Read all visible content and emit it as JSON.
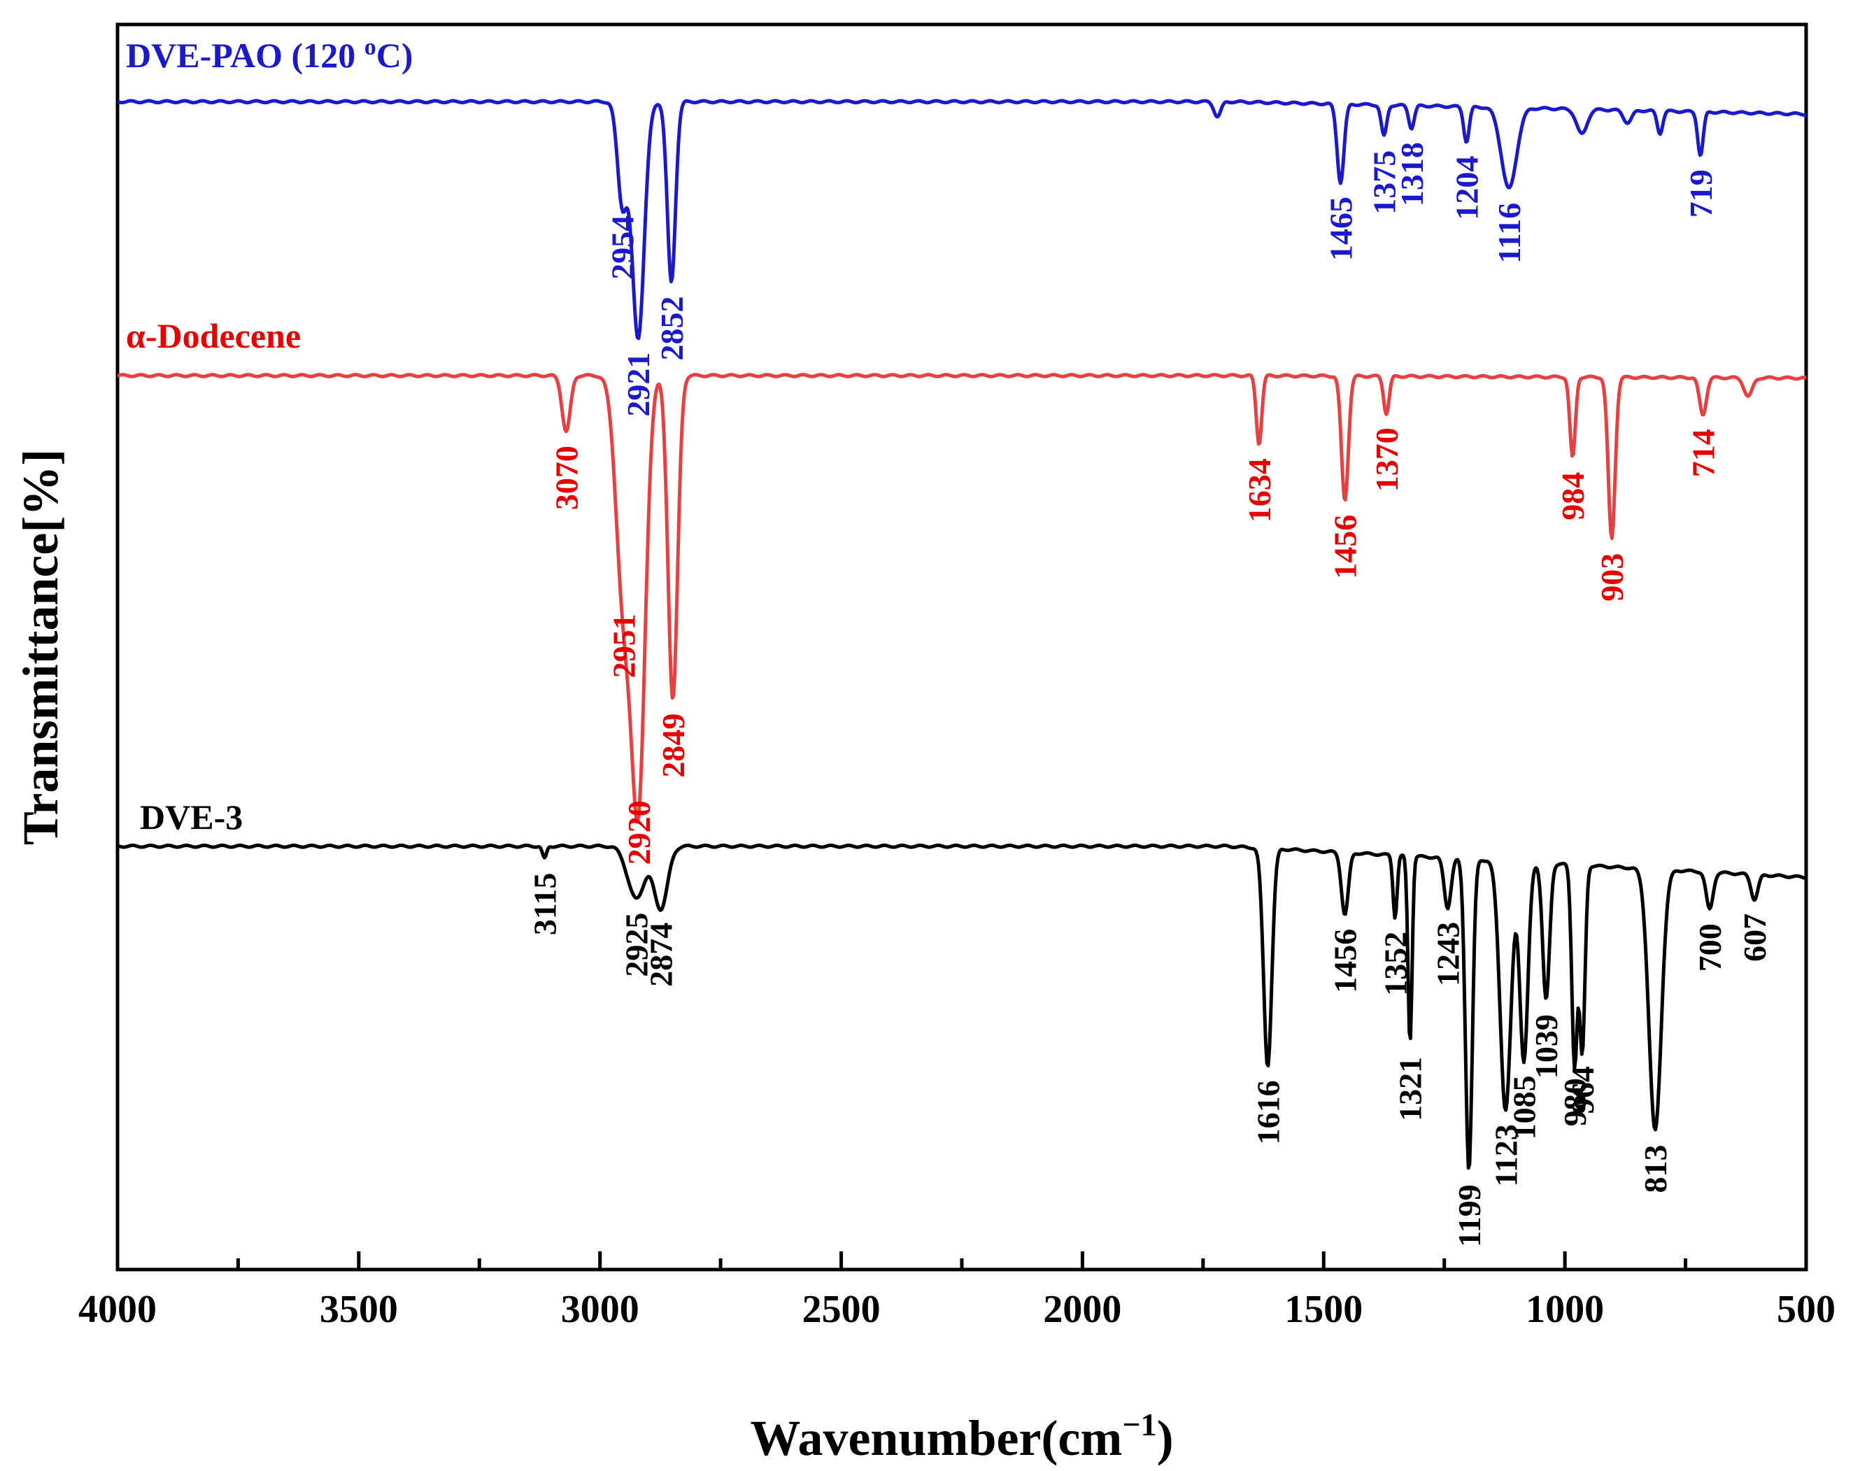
{
  "chart_data": {
    "type": "line",
    "title": "",
    "xlabel": "Wavenumber(cm",
    "xlabel_sup": "−1",
    "xlabel_close": ")",
    "ylabel": "Transmittance[%]",
    "xlim": [
      4000,
      500
    ],
    "x_ticks": [
      "4000",
      "3500",
      "3000",
      "2500",
      "2000",
      "1500",
      "1000",
      "500"
    ],
    "grid": false,
    "legend": "inline labels",
    "series": [
      {
        "name": "DVE-PAO (120 ",
        "name_sup": "o",
        "name_tail": "C)",
        "color": "#1a1acc",
        "baseline": 0.062,
        "tail": 0.072,
        "peaks": [
          {
            "x": 3115,
            "label": "",
            "depth": 0,
            "w": 10
          },
          {
            "x": 2954,
            "label": "2954",
            "depth": 0.08,
            "w": 14
          },
          {
            "x": 2921,
            "label": "2921",
            "depth": 0.19,
            "w": 18
          },
          {
            "x": 2852,
            "label": "2852",
            "depth": 0.145,
            "w": 12
          },
          {
            "x": 1720,
            "label": "",
            "depth": 0.012,
            "w": 10
          },
          {
            "x": 1465,
            "label": "1465",
            "depth": 0.063,
            "w": 10
          },
          {
            "x": 1375,
            "label": "1375",
            "depth": 0.025,
            "w": 8
          },
          {
            "x": 1318,
            "label": "1318",
            "depth": 0.018,
            "w": 8
          },
          {
            "x": 1204,
            "label": "1204",
            "depth": 0.028,
            "w": 8
          },
          {
            "x": 1116,
            "label": "1116",
            "depth": 0.065,
            "w": 22
          },
          {
            "x": 965,
            "label": "",
            "depth": 0.02,
            "w": 15
          },
          {
            "x": 870,
            "label": "",
            "depth": 0.01,
            "w": 12
          },
          {
            "x": 803,
            "label": "",
            "depth": 0.018,
            "w": 8
          },
          {
            "x": 719,
            "label": "719",
            "depth": 0.035,
            "w": 8
          }
        ]
      },
      {
        "name": "α-Dodecene",
        "color": "#e84040",
        "label_color": "#e60000",
        "baseline": 0.282,
        "tail": 0.284,
        "peaks": [
          {
            "x": 3070,
            "label": "3070",
            "depth": 0.045,
            "w": 12
          },
          {
            "x": 2951,
            "label": "2951",
            "depth": 0.18,
            "w": 22
          },
          {
            "x": 2920,
            "label": "2920",
            "depth": 0.33,
            "w": 20
          },
          {
            "x": 2849,
            "label": "2849",
            "depth": 0.26,
            "w": 14
          },
          {
            "x": 1634,
            "label": "1634",
            "depth": 0.055,
            "w": 8
          },
          {
            "x": 1456,
            "label": "1456",
            "depth": 0.1,
            "w": 10
          },
          {
            "x": 1370,
            "label": "1370",
            "depth": 0.03,
            "w": 8
          },
          {
            "x": 984,
            "label": "984",
            "depth": 0.065,
            "w": 8
          },
          {
            "x": 903,
            "label": "903",
            "depth": 0.13,
            "w": 10
          },
          {
            "x": 714,
            "label": "714",
            "depth": 0.03,
            "w": 10
          },
          {
            "x": 620,
            "label": "",
            "depth": 0.015,
            "w": 12
          }
        ]
      },
      {
        "name": "DVE-3",
        "color": "#000000",
        "baseline": 0.66,
        "tail": 0.685,
        "peaks": [
          {
            "x": 3115,
            "label": "3115",
            "depth": 0.01,
            "w": 6
          },
          {
            "x": 2925,
            "label": "2925",
            "depth": 0.042,
            "w": 25
          },
          {
            "x": 2874,
            "label": "2874",
            "depth": 0.05,
            "w": 20
          },
          {
            "x": 1616,
            "label": "1616",
            "depth": 0.175,
            "w": 12
          },
          {
            "x": 1456,
            "label": "1456",
            "depth": 0.05,
            "w": 10
          },
          {
            "x": 1352,
            "label": "1352",
            "depth": 0.05,
            "w": 6
          },
          {
            "x": 1321,
            "label": "1321",
            "depth": 0.15,
            "w": 6
          },
          {
            "x": 1243,
            "label": "1243",
            "depth": 0.04,
            "w": 10
          },
          {
            "x": 1199,
            "label": "1199",
            "depth": 0.25,
            "w": 10
          },
          {
            "x": 1123,
            "label": "1123",
            "depth": 0.2,
            "w": 16
          },
          {
            "x": 1085,
            "label": "1085",
            "depth": 0.16,
            "w": 12
          },
          {
            "x": 1039,
            "label": "1039",
            "depth": 0.11,
            "w": 10
          },
          {
            "x": 980,
            "label": "980",
            "depth": 0.16,
            "w": 8
          },
          {
            "x": 964,
            "label": "964",
            "depth": 0.15,
            "w": 8
          },
          {
            "x": 813,
            "label": "813",
            "depth": 0.21,
            "w": 18
          },
          {
            "x": 700,
            "label": "700",
            "depth": 0.03,
            "w": 10
          },
          {
            "x": 607,
            "label": "607",
            "depth": 0.02,
            "w": 10
          }
        ]
      }
    ]
  }
}
